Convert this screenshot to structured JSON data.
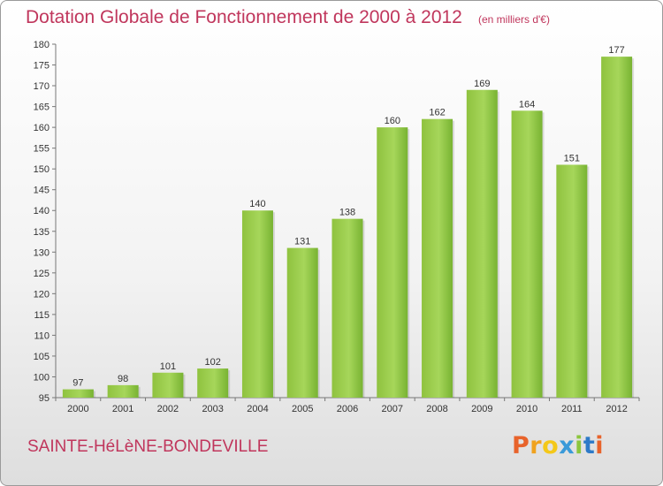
{
  "header": {
    "title": "Dotation Globale de Fonctionnement de 2000 à 2012",
    "subtitle": "(en milliers d'€)"
  },
  "footer": {
    "commune": "SAINTE-HéLèNE-BONDEVILLE",
    "logo_letters": [
      "P",
      "r",
      "o",
      "x",
      "i",
      "t",
      "i"
    ]
  },
  "chart_data": {
    "type": "bar",
    "title": "Dotation Globale de Fonctionnement de 2000 à 2012",
    "subtitle": "(en milliers d'€)",
    "xlabel": "",
    "ylabel": "",
    "categories": [
      "2000",
      "2001",
      "2002",
      "2003",
      "2004",
      "2005",
      "2006",
      "2007",
      "2008",
      "2009",
      "2010",
      "2011",
      "2012"
    ],
    "values": [
      97,
      98,
      101,
      102,
      140,
      131,
      138,
      160,
      162,
      169,
      164,
      151,
      177
    ],
    "ylim": [
      95,
      180
    ],
    "yticks": [
      95,
      100,
      105,
      110,
      115,
      120,
      125,
      130,
      135,
      140,
      145,
      150,
      155,
      160,
      165,
      170,
      175,
      180
    ],
    "grid": false,
    "legend": "none",
    "colors": {
      "bar_light": "#a8d95a",
      "bar_dark": "#68a82a",
      "accent_text": "#c0365c"
    }
  }
}
